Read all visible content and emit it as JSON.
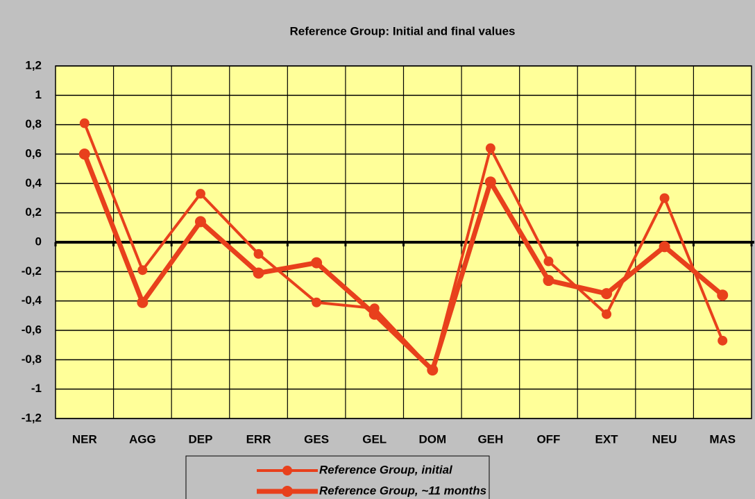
{
  "chart_data": {
    "type": "line",
    "title": "Reference Group: Initial and final values",
    "categories": [
      "NER",
      "AGG",
      "DEP",
      "ERR",
      "GES",
      "GEL",
      "DOM",
      "GEH",
      "OFF",
      "EXT",
      "NEU",
      "MAS"
    ],
    "series": [
      {
        "name": "Reference Group, initial",
        "color": "#e8401c",
        "values": [
          0.81,
          -0.19,
          0.33,
          -0.08,
          -0.41,
          -0.45,
          -0.87,
          0.64,
          -0.13,
          -0.49,
          0.3,
          -0.67
        ]
      },
      {
        "name": "Reference Group, ~11 months",
        "color": "#e8401c",
        "values": [
          0.6,
          -0.41,
          0.14,
          -0.21,
          -0.14,
          -0.49,
          -0.87,
          0.41,
          -0.26,
          -0.35,
          -0.03,
          -0.36
        ]
      }
    ],
    "ylim": [
      -1.2,
      1.2
    ],
    "yticks": [
      {
        "value": -1.2,
        "label": "-1,2"
      },
      -1,
      {
        "value": -0.8,
        "label": "-0,8"
      },
      {
        "value": -0.6,
        "label": "-0,6"
      },
      {
        "value": -0.4,
        "label": "-0,4"
      },
      {
        "value": -0.2,
        "label": "-0,2"
      },
      0,
      {
        "value": 0.2,
        "label": "0,2"
      },
      {
        "value": 0.4,
        "label": "0,4"
      },
      {
        "value": 0.6,
        "label": "0,6"
      },
      {
        "value": 0.8,
        "label": "0,8"
      },
      1,
      {
        "value": 1.2,
        "label": "1,2"
      }
    ],
    "grid": true
  }
}
